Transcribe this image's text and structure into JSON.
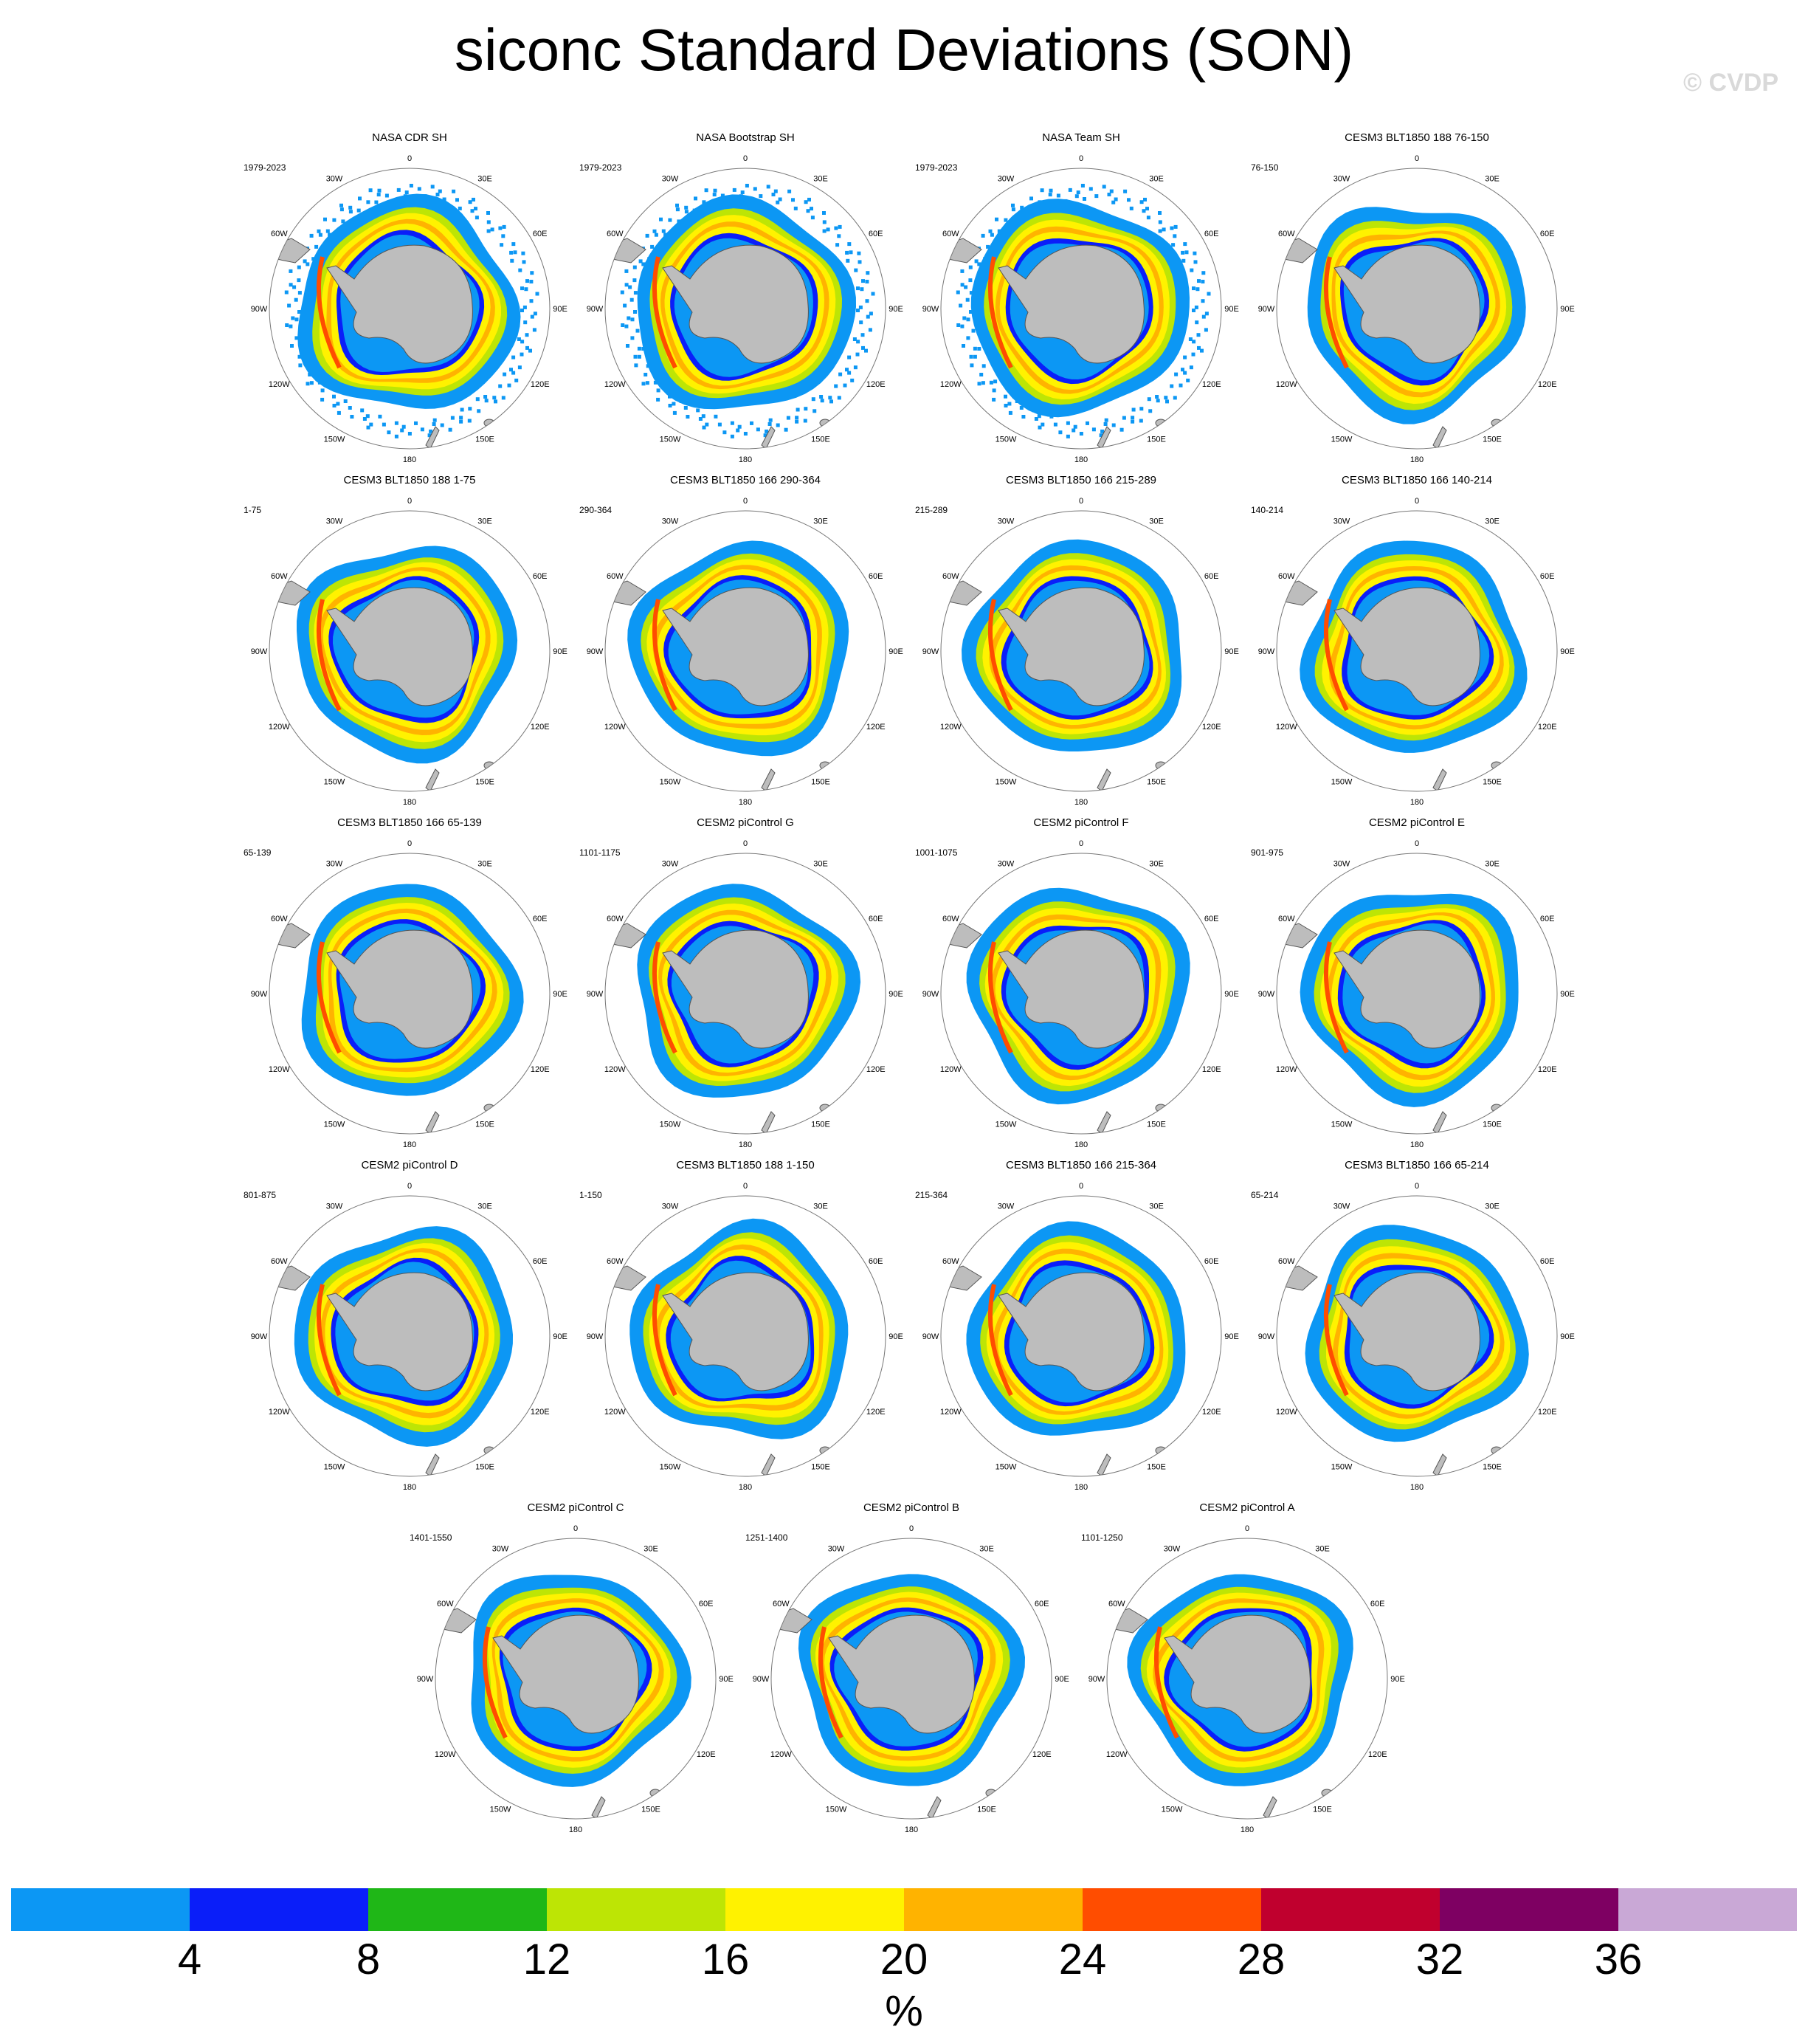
{
  "title": "siconc Standard Deviations (SON)",
  "watermark": "© CVDP",
  "units": "%",
  "colorbar": {
    "labels": [
      "4",
      "8",
      "12",
      "16",
      "20",
      "24",
      "28",
      "32",
      "36"
    ],
    "colors": [
      "#0c97f4",
      "#0a1ef9",
      "#1fb717",
      "#bde505",
      "#fff200",
      "#ffb300",
      "#ff4d00",
      "#c0002e",
      "#7e0062",
      "#c9a8d6"
    ]
  },
  "tick_labels": {
    "0": "0",
    "30E": "30E",
    "60E": "60E",
    "90E": "90E",
    "120E": "120E",
    "150E": "150E",
    "180": "180",
    "150W": "150W",
    "120W": "120W",
    "90W": "90W",
    "60W": "60W",
    "30W": "30W"
  },
  "panels": [
    {
      "title": "NASA CDR SH",
      "period": "1979-2023"
    },
    {
      "title": "NASA Bootstrap SH",
      "period": "1979-2023"
    },
    {
      "title": "NASA Team SH",
      "period": "1979-2023"
    },
    {
      "title": "CESM3 BLT1850 188 76-150",
      "period": "76-150"
    },
    {
      "title": "CESM3 BLT1850 188 1-75",
      "period": "1-75"
    },
    {
      "title": "CESM3 BLT1850 166 290-364",
      "period": "290-364"
    },
    {
      "title": "CESM3 BLT1850 166 215-289",
      "period": "215-289"
    },
    {
      "title": "CESM3 BLT1850 166 140-214",
      "period": "140-214"
    },
    {
      "title": "CESM3 BLT1850 166 65-139",
      "period": "65-139"
    },
    {
      "title": "CESM2 piControl G",
      "period": "1101-1175"
    },
    {
      "title": "CESM2 piControl F",
      "period": "1001-1075"
    },
    {
      "title": "CESM2 piControl E",
      "period": "901-975"
    },
    {
      "title": "CESM2 piControl D",
      "period": "801-875"
    },
    {
      "title": "CESM3 BLT1850 188 1-150",
      "period": "1-150"
    },
    {
      "title": "CESM3 BLT1850 166 215-364",
      "period": "215-364"
    },
    {
      "title": "CESM3 BLT1850 166 65-214",
      "period": "65-214"
    },
    {
      "title": "CESM2 piControl C",
      "period": "1401-1550"
    },
    {
      "title": "CESM2 piControl B",
      "period": "1251-1400"
    },
    {
      "title": "CESM2 piControl A",
      "period": "1101-1250"
    }
  ]
}
